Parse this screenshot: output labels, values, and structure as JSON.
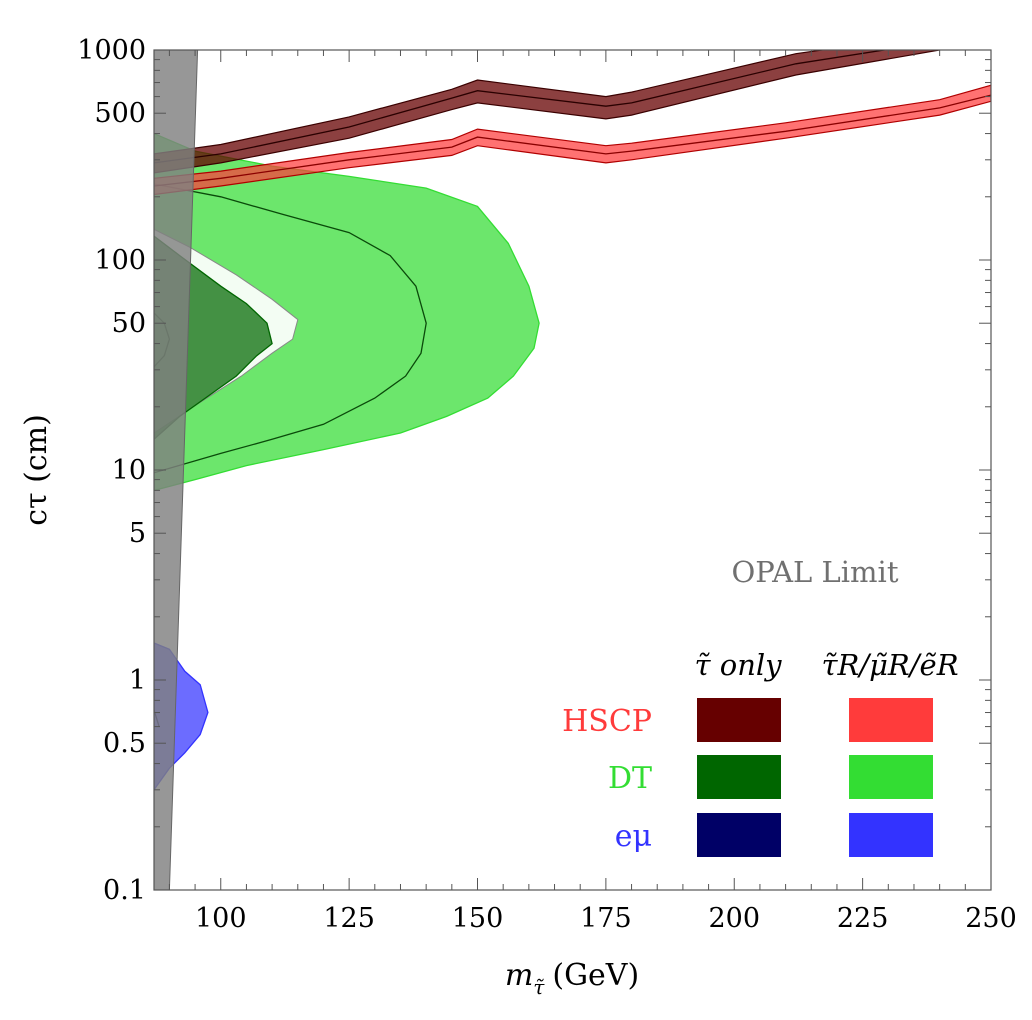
{
  "chart_data": {
    "type": "area",
    "title": "",
    "xlabel": "m",
    "xlabel_sub": "τ̃",
    "xlabel_unit": "(GeV)",
    "ylabel": "cτ (cm)",
    "xlim": [
      87,
      250
    ],
    "ylim": [
      0.1,
      1000
    ],
    "yscale": "log",
    "x_ticks": [
      100,
      125,
      150,
      175,
      200,
      225,
      250
    ],
    "y_ticks": [
      {
        "value": 0.1,
        "label": "0.1"
      },
      {
        "value": 0.5,
        "label": "0.5"
      },
      {
        "value": 1,
        "label": "1"
      },
      {
        "value": 5,
        "label": "5"
      },
      {
        "value": 10,
        "label": "10"
      },
      {
        "value": 50,
        "label": "50"
      },
      {
        "value": 100,
        "label": "100"
      },
      {
        "value": 500,
        "label": "500"
      },
      {
        "value": 1000,
        "label": "1000"
      }
    ],
    "annotation": "OPAL Limit",
    "legend": {
      "placement": "bottom-right",
      "col_headers": [
        "τ̃ only",
        "τ̃R/μ̃R/ẽR"
      ],
      "rows": [
        {
          "label": "HSCP",
          "label_color": "#ff3b3b",
          "colors": [
            "#660000",
            "#ff3b3b"
          ]
        },
        {
          "label": "DT",
          "label_color": "#33dd33",
          "colors": [
            "#006600",
            "#33dd33"
          ]
        },
        {
          "label": "eμ",
          "label_color": "#3333ff",
          "colors": [
            "#000066",
            "#3333ff"
          ]
        }
      ]
    },
    "series": [
      {
        "name": "HSCP",
        "group": "τ̃ only",
        "kind": "band",
        "color": "#660000",
        "x": [
          87,
          100,
          125,
          145,
          150,
          175,
          180,
          212,
          240
        ],
        "central": [
          290,
          320,
          430,
          590,
          640,
          540,
          560,
          860,
          1100
        ],
        "lower": [
          260,
          290,
          380,
          520,
          560,
          470,
          490,
          760,
          1000
        ],
        "upper": [
          320,
          355,
          480,
          650,
          720,
          600,
          630,
          960,
          1200
        ]
      },
      {
        "name": "HSCP",
        "group": "τ̃R/μ̃R/ẽR",
        "kind": "band",
        "color": "#ff3b3b",
        "x": [
          87,
          100,
          125,
          145,
          150,
          175,
          180,
          210,
          240,
          250
        ],
        "central": [
          225,
          245,
          300,
          345,
          385,
          320,
          330,
          410,
          530,
          610
        ],
        "lower": [
          205,
          225,
          275,
          315,
          350,
          290,
          300,
          380,
          490,
          570
        ],
        "upper": [
          245,
          265,
          325,
          375,
          420,
          350,
          360,
          450,
          580,
          680
        ]
      },
      {
        "name": "DT",
        "group": "τ̃R/μ̃R/ẽR",
        "kind": "region",
        "color": "#33dd33",
        "outer": [
          [
            87,
            400
          ],
          [
            95,
            330
          ],
          [
            110,
            280
          ],
          [
            125,
            250
          ],
          [
            140,
            220
          ],
          [
            150,
            180
          ],
          [
            156,
            120
          ],
          [
            160,
            75
          ],
          [
            162,
            50
          ],
          [
            161,
            38
          ],
          [
            157,
            28
          ],
          [
            152,
            22
          ],
          [
            144,
            18
          ],
          [
            135,
            15
          ],
          [
            120,
            12.5
          ],
          [
            105,
            10.5
          ],
          [
            95,
            9
          ],
          [
            87,
            8
          ]
        ],
        "inner": [
          [
            87,
            230
          ],
          [
            100,
            200
          ],
          [
            112,
            165
          ],
          [
            125,
            135
          ],
          [
            133,
            105
          ],
          [
            138,
            75
          ],
          [
            140,
            50
          ],
          [
            139,
            36
          ],
          [
            136,
            28
          ],
          [
            130,
            22
          ],
          [
            120,
            16.5
          ],
          [
            110,
            14
          ],
          [
            100,
            12
          ],
          [
            87,
            9.7
          ]
        ],
        "hole": [
          [
            87,
            140
          ],
          [
            94,
            115
          ],
          [
            103,
            85
          ],
          [
            110,
            65
          ],
          [
            115,
            52
          ],
          [
            114,
            42
          ],
          [
            110,
            36
          ],
          [
            104,
            28
          ],
          [
            96,
            21
          ],
          [
            87,
            15
          ]
        ]
      },
      {
        "name": "DT",
        "group": "τ̃ only",
        "kind": "region",
        "color": "#006600",
        "outer": [
          [
            87,
            130
          ],
          [
            92,
            105
          ],
          [
            100,
            75
          ],
          [
            105,
            62
          ],
          [
            109,
            50
          ],
          [
            110,
            40
          ],
          [
            107,
            35
          ],
          [
            103,
            28
          ],
          [
            97,
            22
          ],
          [
            92,
            18
          ],
          [
            87,
            14
          ]
        ],
        "inner": [
          [
            87,
            56
          ],
          [
            89,
            50
          ],
          [
            90,
            42
          ],
          [
            89,
            35
          ],
          [
            87,
            31
          ]
        ]
      },
      {
        "name": "eμ",
        "group": "τ̃R/μ̃R/ẽR",
        "kind": "region",
        "color": "#3333ff",
        "outer": [
          [
            87,
            1.5
          ],
          [
            90,
            1.4
          ],
          [
            93,
            1.1
          ],
          [
            96,
            0.95
          ],
          [
            97.5,
            0.7
          ],
          [
            96,
            0.55
          ],
          [
            93,
            0.45
          ],
          [
            90,
            0.38
          ],
          [
            87,
            0.3
          ]
        ],
        "inner": [
          [
            87,
            0.72
          ],
          [
            88,
            0.6
          ]
        ]
      },
      {
        "name": "OPAL Limit",
        "kind": "exclusion",
        "color": "#808080",
        "polygon": [
          [
            87,
            1000
          ],
          [
            95.5,
            1000
          ],
          [
            90,
            0.1
          ],
          [
            87,
            0.1
          ]
        ]
      }
    ]
  }
}
